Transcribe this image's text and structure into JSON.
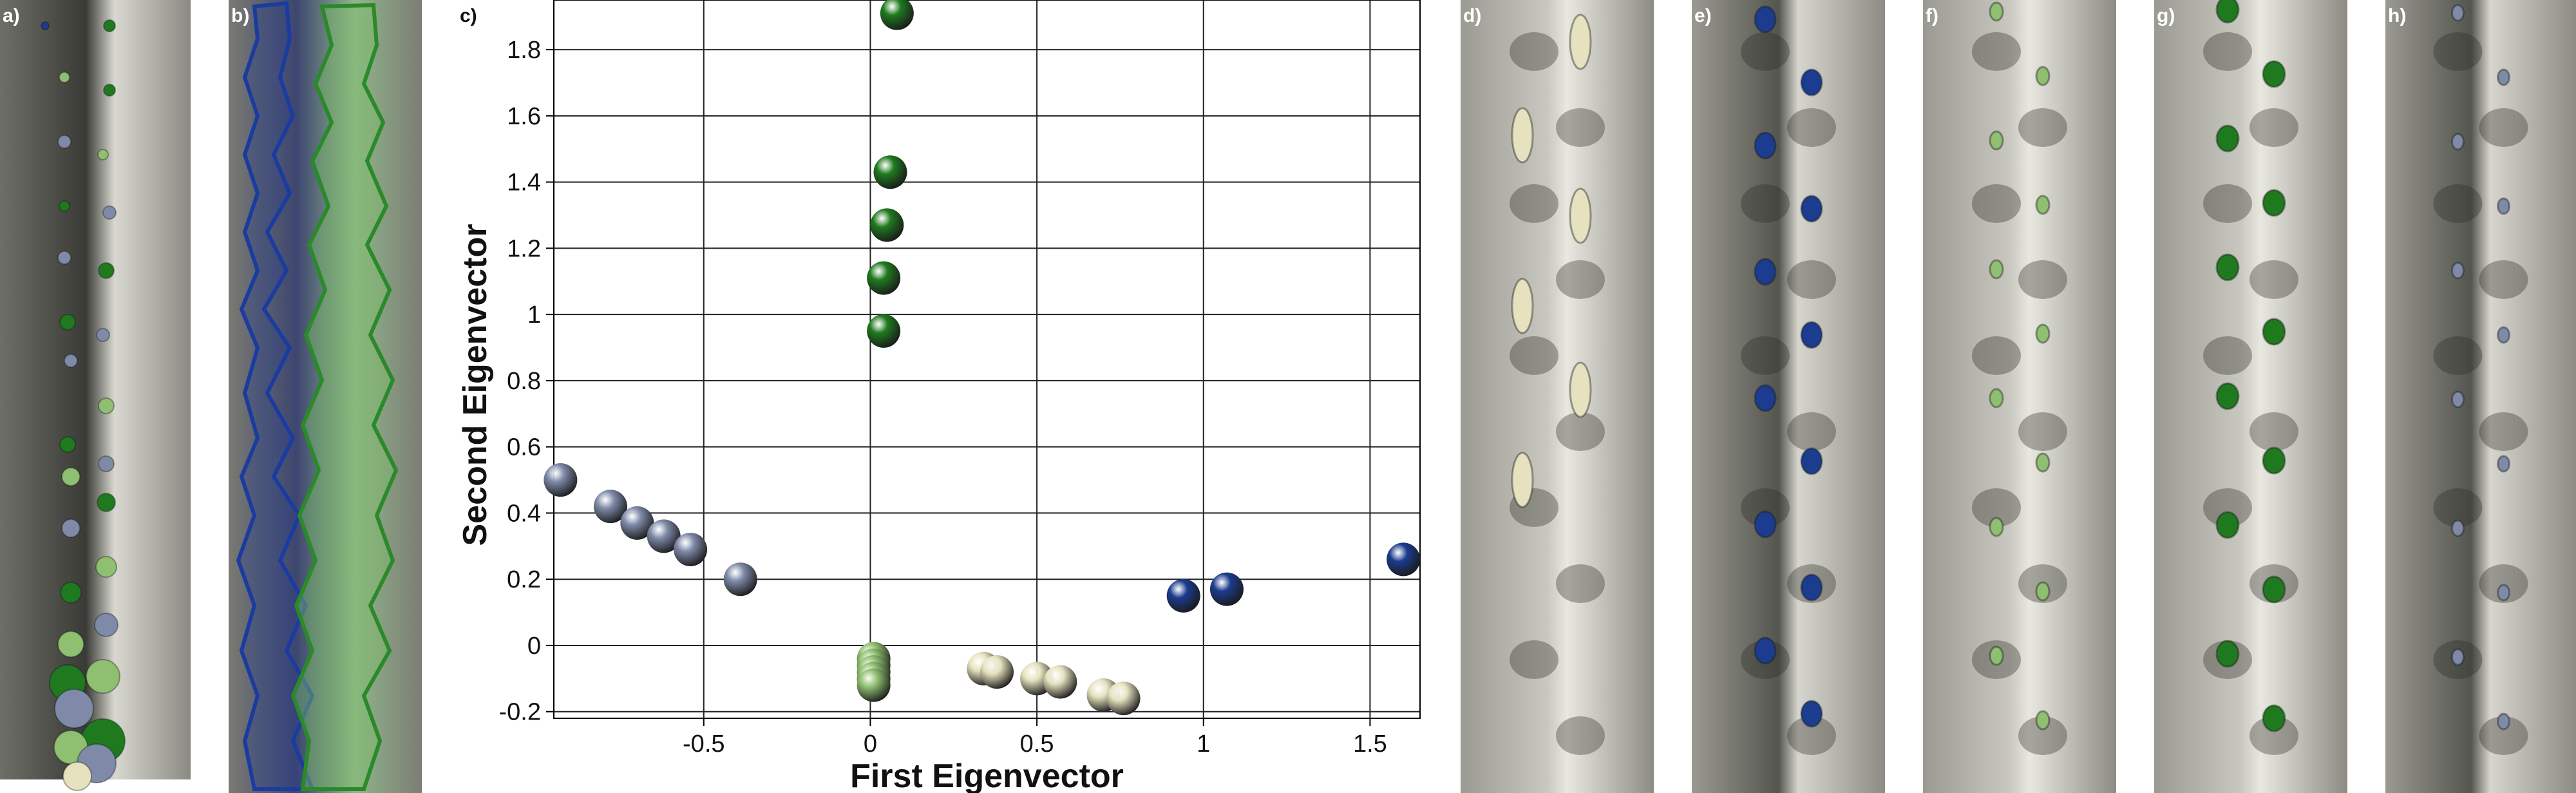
{
  "panels": {
    "a": "a)",
    "b": "b)",
    "c": "c)",
    "d": "d)",
    "e": "e)",
    "f": "f)",
    "g": "g)",
    "h": "h)"
  },
  "colors": {
    "dark_blue": "#1b3c8f",
    "slate_blue": "#7f8aa8",
    "dark_green": "#1f7a1f",
    "light_green": "#8fbf70",
    "cream": "#e6e2bf",
    "field_gray": "#8c8c84"
  },
  "chart_data": {
    "type": "scatter",
    "xlabel": "First Eigenvector",
    "ylabel": "Second Eigenvector",
    "xlim": [
      -0.95,
      1.65
    ],
    "ylim": [
      -0.22,
      1.95
    ],
    "xticks": [
      -0.5,
      0,
      0.5,
      1,
      1.5
    ],
    "xtick_labels": [
      "-0.5",
      "0",
      "0.5",
      "1",
      "1.5"
    ],
    "yticks": [
      -0.2,
      0,
      0.2,
      0.4,
      0.6,
      0.8,
      1,
      1.2,
      1.4,
      1.6,
      1.8
    ],
    "ytick_labels": [
      "-0.2",
      "0",
      "0.2",
      "0.4",
      "0.6",
      "0.8",
      "1",
      "1.2",
      "1.4",
      "1.6",
      "1.8"
    ],
    "grid": true,
    "series": [
      {
        "color": "slate_blue",
        "x": [
          -0.93,
          -0.78,
          -0.7,
          -0.62,
          -0.54,
          -0.39
        ],
        "y": [
          0.5,
          0.42,
          0.37,
          0.33,
          0.29,
          0.2
        ]
      },
      {
        "color": "dark_green",
        "x": [
          0.08,
          0.06,
          0.05,
          0.04,
          0.04
        ],
        "y": [
          1.91,
          1.43,
          1.27,
          1.11,
          0.95
        ]
      },
      {
        "color": "light_green",
        "x": [
          0.01,
          0.01,
          0.01,
          0.01,
          0.01
        ],
        "y": [
          -0.04,
          -0.06,
          -0.08,
          -0.1,
          -0.12
        ]
      },
      {
        "color": "cream",
        "x": [
          0.34,
          0.38,
          0.5,
          0.57,
          0.7,
          0.76
        ],
        "y": [
          -0.07,
          -0.08,
          -0.1,
          -0.11,
          -0.15,
          -0.16
        ]
      },
      {
        "color": "dark_blue",
        "x": [
          0.94,
          1.07,
          1.6
        ],
        "y": [
          0.15,
          0.17,
          0.26
        ]
      }
    ]
  }
}
